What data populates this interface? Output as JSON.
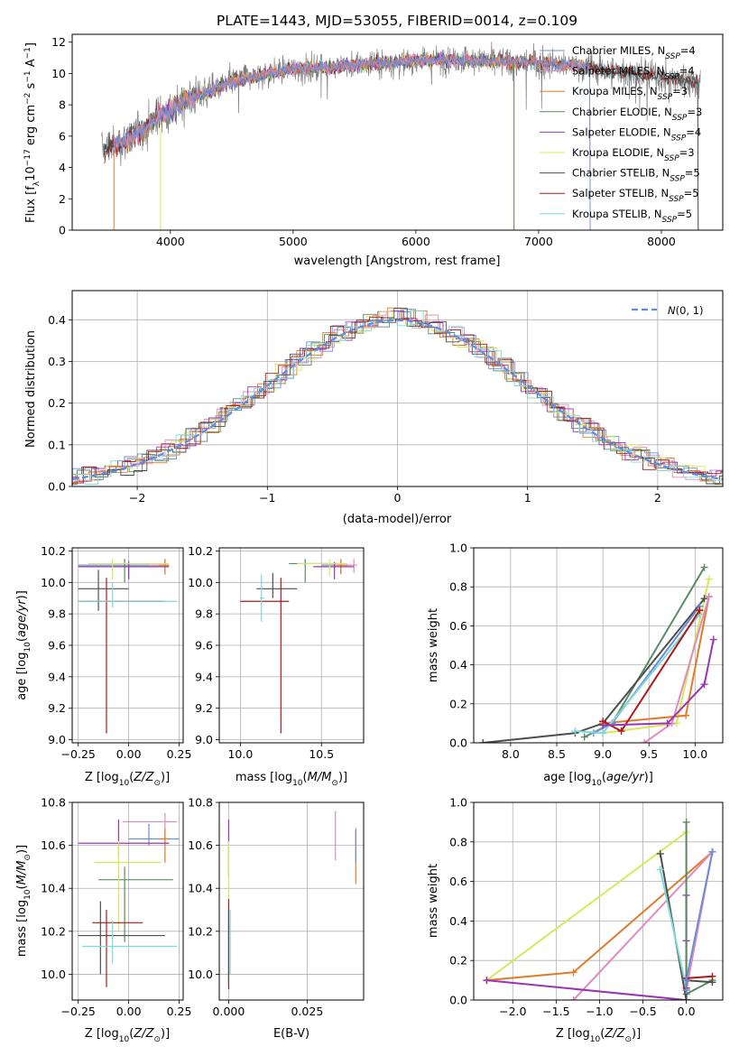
{
  "colors": {
    "chabrier_miles": "#6a8fd8",
    "salpeter_miles": "#e08bbf",
    "kroupa_miles": "#e07b2a",
    "chabrier_elodie": "#5a8a64",
    "salpeter_elodie": "#9b34b4",
    "kroupa_elodie": "#d7e85a",
    "chabrier_stelib": "#4d4d4d",
    "salpeter_stelib": "#b01818",
    "kroupa_stelib": "#7fd8d8",
    "gauss": "#5b8ee0",
    "data": "#808080"
  },
  "chart_data": [
    {
      "id": "spectrum",
      "type": "line",
      "title": "PLATE=1443, MJD=53055, FIBERID=0014, z=0.109",
      "xlabel": "wavelength [Angstrom, rest frame]",
      "ylabel": "Flux [f",
      "ylabel_parts": [
        "Flux [f",
        "λ",
        "10",
        "−17",
        " erg cm",
        "−2",
        " s",
        "−1",
        " A",
        "−1",
        "]"
      ],
      "xlim": [
        3200,
        8500
      ],
      "ylim": [
        0,
        12.5
      ],
      "xticks": [
        4000,
        5000,
        6000,
        7000,
        8000
      ],
      "yticks": [
        0,
        2,
        4,
        6,
        8,
        10,
        12
      ],
      "legend_position": "right",
      "legend": [
        "Chabrier MILES, N",
        "Salpeter MILES, N",
        "Kroupa MILES, N",
        "Chabrier ELODIE, N",
        "Salpeter ELODIE, N",
        "Kroupa ELODIE, N",
        "Chabrier STELIB, N",
        "Salpeter STELIB, N",
        "Kroupa STELIB, N"
      ],
      "legend_sub": "SSP",
      "legend_n": [
        "=4",
        "=4",
        "=3",
        "=3",
        "=4",
        "=3",
        "=5",
        "=5",
        "=5"
      ],
      "legend_color_keys": [
        "chabrier_miles",
        "salpeter_miles",
        "kroupa_miles",
        "chabrier_elodie",
        "salpeter_elodie",
        "kroupa_elodie",
        "chabrier_stelib",
        "salpeter_stelib",
        "kroupa_stelib"
      ],
      "continuum": [
        [
          3450,
          5.2
        ],
        [
          3600,
          5.6
        ],
        [
          3800,
          6.6
        ],
        [
          3900,
          7.3
        ],
        [
          4000,
          7.6
        ],
        [
          4100,
          8.2
        ],
        [
          4300,
          8.8
        ],
        [
          4500,
          9.5
        ],
        [
          4800,
          10.0
        ],
        [
          5000,
          10.3
        ],
        [
          5300,
          10.4
        ],
        [
          5600,
          10.6
        ],
        [
          6000,
          10.8
        ],
        [
          6300,
          10.9
        ],
        [
          6600,
          10.8
        ],
        [
          7000,
          10.7
        ],
        [
          7400,
          10.4
        ],
        [
          7800,
          10.0
        ],
        [
          8300,
          9.5
        ]
      ],
      "data_range": [
        3440,
        8320
      ],
      "model_range": [
        3500,
        7420
      ]
    },
    {
      "id": "residuals",
      "type": "line",
      "xlabel": "(data-model)/error",
      "ylabel": "Normed distribution",
      "xlim": [
        -2.5,
        2.5
      ],
      "ylim": [
        0,
        0.47
      ],
      "xticks": [
        -2,
        -1,
        0,
        1,
        2
      ],
      "xtick_labels": [
        "−2",
        "−1",
        "0",
        "1",
        "2"
      ],
      "yticks": [
        0.0,
        0.1,
        0.2,
        0.3,
        0.4
      ],
      "grid": true,
      "legend_position": "top-right",
      "gauss_label": "N(0, 1)",
      "bin_width": 0.1
    },
    {
      "id": "age_vs_Z",
      "type": "scatter",
      "xlabel": "Z [log",
      "ylabel": "age  [log",
      "xlim": [
        -0.28,
        0.27
      ],
      "ylim": [
        8.98,
        10.22
      ],
      "xticks": [
        -0.25,
        0.0,
        0.25
      ],
      "xtick_labels": [
        "−0.25",
        "0.00",
        "0.25"
      ],
      "yticks": [
        9.0,
        9.2,
        9.4,
        9.6,
        9.8,
        10.0,
        10.2
      ],
      "grid": true,
      "errorbars": [
        {
          "c": "chabrier_miles",
          "x": 0.0,
          "xe": [
            -0.25,
            0.18
          ],
          "y": 10.11,
          "ye": [
            10.02,
            10.14
          ]
        },
        {
          "c": "salpeter_miles",
          "x": 0.18,
          "xe": [
            0.1,
            0.2
          ],
          "y": 10.11,
          "ye": [
            10.05,
            10.15
          ]
        },
        {
          "c": "kroupa_miles",
          "x": 0.18,
          "xe": [
            0.15,
            0.2
          ],
          "y": 10.11,
          "ye": [
            10.05,
            10.15
          ]
        },
        {
          "c": "chabrier_elodie",
          "x": -0.02,
          "xe": [
            -0.25,
            0.2
          ],
          "y": 10.1,
          "ye": [
            10.0,
            10.15
          ]
        },
        {
          "c": "salpeter_elodie",
          "x": 0.0,
          "xe": [
            -0.25,
            0.2
          ],
          "y": 10.1,
          "ye": [
            10.02,
            10.13
          ]
        },
        {
          "c": "kroupa_elodie",
          "x": -0.08,
          "xe": [
            -0.2,
            0.2
          ],
          "y": 10.12,
          "ye": [
            10.02,
            10.15
          ]
        },
        {
          "c": "chabrier_stelib",
          "x": -0.15,
          "xe": [
            -0.25,
            0.0
          ],
          "y": 9.96,
          "ye": [
            9.82,
            10.08
          ]
        },
        {
          "c": "salpeter_stelib",
          "x": -0.11,
          "xe": [
            -0.25,
            0.18
          ],
          "y": 9.88,
          "ye": [
            9.04,
            10.03
          ]
        },
        {
          "c": "kroupa_stelib",
          "x": -0.08,
          "xe": [
            -0.25,
            0.24
          ],
          "y": 9.88,
          "ye": [
            9.84,
            10.0
          ]
        }
      ]
    },
    {
      "id": "age_vs_mass",
      "type": "scatter",
      "xlabel": "mass [log",
      "xlim": [
        9.87,
        10.76
      ],
      "ylim": [
        8.98,
        10.22
      ],
      "xticks": [
        10.0,
        10.5
      ],
      "xtick_labels": [
        "10.0",
        "10.5"
      ],
      "yticks": [
        9.0,
        9.2,
        9.4,
        9.6,
        9.8,
        10.0,
        10.2
      ],
      "grid": true,
      "errorbars": [
        {
          "c": "chabrier_miles",
          "x": 10.62,
          "xe": [
            10.5,
            10.68
          ],
          "y": 10.11,
          "ye": [
            10.06,
            10.14
          ]
        },
        {
          "c": "salpeter_miles",
          "x": 10.7,
          "xe": [
            10.62,
            10.72
          ],
          "y": 10.11,
          "ye": [
            10.06,
            10.15
          ]
        },
        {
          "c": "kroupa_miles",
          "x": 10.62,
          "xe": [
            10.58,
            10.66
          ],
          "y": 10.11,
          "ye": [
            10.05,
            10.15
          ]
        },
        {
          "c": "chabrier_elodie",
          "x": 10.4,
          "xe": [
            10.3,
            10.62
          ],
          "y": 10.12,
          "ye": [
            10.0,
            10.15
          ]
        },
        {
          "c": "salpeter_elodie",
          "x": 10.58,
          "xe": [
            10.45,
            10.7
          ],
          "y": 10.1,
          "ye": [
            10.02,
            10.13
          ]
        },
        {
          "c": "kroupa_elodie",
          "x": 10.55,
          "xe": [
            10.35,
            10.66
          ],
          "y": 10.12,
          "ye": [
            10.04,
            10.15
          ]
        },
        {
          "c": "chabrier_stelib",
          "x": 10.2,
          "xe": [
            10.1,
            10.35
          ],
          "y": 9.96,
          "ye": [
            9.9,
            10.06
          ]
        },
        {
          "c": "salpeter_stelib",
          "x": 10.25,
          "xe": [
            10.0,
            10.3
          ],
          "y": 9.88,
          "ye": [
            9.04,
            10.03
          ]
        },
        {
          "c": "kroupa_stelib",
          "x": 10.13,
          "xe": [
            10.12,
            10.15
          ],
          "y": 9.9,
          "ye": [
            9.75,
            10.05
          ]
        }
      ]
    },
    {
      "id": "weight_vs_age",
      "type": "line",
      "xlabel": "age  [log",
      "ylabel": "mass weight",
      "xlim": [
        7.6,
        10.3
      ],
      "ylim": [
        0,
        1.0
      ],
      "xticks": [
        8.0,
        8.5,
        9.0,
        9.5,
        10.0
      ],
      "xtick_labels": [
        "8.0",
        "8.5",
        "9.0",
        "9.5",
        "10.0"
      ],
      "yticks": [
        0.0,
        0.2,
        0.4,
        0.6,
        0.8,
        1.0
      ],
      "grid": true,
      "series": [
        {
          "c": "chabrier_elodie",
          "x": [
            8.8,
            9.1,
            10.1
          ],
          "y": [
            0.03,
            0.1,
            0.9
          ]
        },
        {
          "c": "kroupa_elodie",
          "x": [
            9.0,
            9.8,
            10.15
          ],
          "y": [
            0.05,
            0.1,
            0.84
          ]
        },
        {
          "c": "chabrier_stelib",
          "x": [
            7.7,
            8.7,
            9.0,
            10.1
          ],
          "y": [
            0.0,
            0.05,
            0.1,
            0.74
          ]
        },
        {
          "c": "kroupa_miles",
          "x": [
            9.0,
            9.9,
            10.15
          ],
          "y": [
            0.1,
            0.14,
            0.75
          ]
        },
        {
          "c": "salpeter_miles",
          "x": [
            9.45,
            9.75,
            10.15
          ],
          "y": [
            0.0,
            0.1,
            0.75
          ]
        },
        {
          "c": "chabrier_miles",
          "x": [
            8.9,
            9.1,
            10.05
          ],
          "y": [
            0.05,
            0.1,
            0.7
          ]
        },
        {
          "c": "kroupa_stelib",
          "x": [
            8.7,
            9.0,
            10.05
          ],
          "y": [
            0.06,
            0.05,
            0.66
          ]
        },
        {
          "c": "salpeter_stelib",
          "x": [
            9.0,
            9.2,
            10.05
          ],
          "y": [
            0.11,
            0.06,
            0.68
          ]
        },
        {
          "c": "salpeter_elodie",
          "x": [
            9.0,
            9.7,
            10.1,
            10.2
          ],
          "y": [
            0.09,
            0.1,
            0.3,
            0.53
          ]
        }
      ]
    },
    {
      "id": "mass_vs_Z",
      "type": "scatter",
      "xlabel": "Z [log",
      "ylabel": "mass [log",
      "xlim": [
        -0.28,
        0.27
      ],
      "ylim": [
        9.88,
        10.8
      ],
      "xticks": [
        -0.25,
        0.0,
        0.25
      ],
      "xtick_labels": [
        "−0.25",
        "0.00",
        "0.25"
      ],
      "yticks": [
        10.0,
        10.2,
        10.4,
        10.6,
        10.8
      ],
      "grid": true,
      "errorbars": [
        {
          "c": "chabrier_miles",
          "x": 0.1,
          "xe": [
            0.0,
            0.25
          ],
          "y": 10.63,
          "ye": [
            10.6,
            10.7
          ]
        },
        {
          "c": "salpeter_miles",
          "x": 0.18,
          "xe": [
            -0.03,
            0.24
          ],
          "y": 10.71,
          "ye": [
            10.6,
            10.75
          ]
        },
        {
          "c": "kroupa_miles",
          "x": 0.18,
          "xe": [
            0.15,
            0.2
          ],
          "y": 10.63,
          "ye": [
            10.52,
            10.68
          ]
        },
        {
          "c": "chabrier_elodie",
          "x": -0.02,
          "xe": [
            -0.15,
            0.22
          ],
          "y": 10.44,
          "ye": [
            10.15,
            10.5
          ]
        },
        {
          "c": "salpeter_elodie",
          "x": -0.05,
          "xe": [
            -0.25,
            0.2
          ],
          "y": 10.61,
          "ye": [
            10.55,
            10.72
          ]
        },
        {
          "c": "kroupa_elodie",
          "x": -0.05,
          "xe": [
            -0.17,
            0.16
          ],
          "y": 10.52,
          "ye": [
            10.2,
            10.62
          ]
        },
        {
          "c": "chabrier_stelib",
          "x": -0.14,
          "xe": [
            -0.25,
            0.18
          ],
          "y": 10.18,
          "ye": [
            10.0,
            10.34
          ]
        },
        {
          "c": "salpeter_stelib",
          "x": -0.11,
          "xe": [
            -0.18,
            0.07
          ],
          "y": 10.24,
          "ye": [
            9.94,
            10.3
          ]
        },
        {
          "c": "kroupa_stelib",
          "x": -0.08,
          "xe": [
            -0.23,
            0.24
          ],
          "y": 10.13,
          "ye": [
            10.05,
            10.25
          ]
        }
      ]
    },
    {
      "id": "mass_vs_ebv",
      "type": "scatter",
      "xlabel": "E(B-V)",
      "xlim": [
        -0.003,
        0.043
      ],
      "ylim": [
        9.88,
        10.8
      ],
      "xticks": [
        0.0,
        0.025
      ],
      "xtick_labels": [
        "0.000",
        "0.025"
      ],
      "yticks": [
        10.0,
        10.2,
        10.4,
        10.6,
        10.8
      ],
      "grid": true,
      "errorbars": [
        {
          "c": "salpeter_miles",
          "x": 0.034,
          "ye": [
            10.53,
            10.76
          ]
        },
        {
          "c": "kroupa_miles",
          "x": 0.0405,
          "ye": [
            10.42,
            10.67
          ]
        },
        {
          "c": "chabrier_miles",
          "x": 0.0405,
          "ye": [
            10.52,
            10.68
          ]
        },
        {
          "c": "salpeter_elodie",
          "x": 0.0,
          "ye": [
            10.45,
            10.72
          ]
        },
        {
          "c": "kroupa_elodie",
          "x": 0.0,
          "ye": [
            10.35,
            10.62
          ]
        },
        {
          "c": "salpeter_stelib",
          "x": 0.0,
          "ye": [
            9.93,
            10.35
          ]
        },
        {
          "c": "chabrier_stelib",
          "x": 0.0,
          "ye": [
            9.95,
            10.3
          ]
        },
        {
          "c": "kroupa_stelib",
          "x": 0.0005,
          "ye": [
            10.0,
            10.3
          ]
        }
      ]
    },
    {
      "id": "weight_vs_Z",
      "type": "line",
      "xlabel": "Z [log",
      "ylabel": "mass weight",
      "xlim": [
        -2.45,
        0.42
      ],
      "ylim": [
        0,
        1.0
      ],
      "xticks": [
        -2.0,
        -1.5,
        -1.0,
        -0.5,
        0.0
      ],
      "xtick_labels": [
        "−2.0",
        "−1.5",
        "−1.0",
        "−0.5",
        "0.0"
      ],
      "yticks": [
        0.0,
        0.2,
        0.4,
        0.6,
        0.8,
        1.0
      ],
      "grid": true,
      "series": [
        {
          "c": "kroupa_elodie",
          "x": [
            -2.3,
            0.0,
            0.0
          ],
          "y": [
            0.1,
            0.85,
            0.05
          ]
        },
        {
          "c": "kroupa_miles",
          "x": [
            -2.3,
            -1.3,
            0.3
          ],
          "y": [
            0.1,
            0.14,
            0.75
          ]
        },
        {
          "c": "salpeter_miles",
          "x": [
            -1.3,
            0.3,
            0.0
          ],
          "y": [
            0.0,
            0.75,
            0.05
          ]
        },
        {
          "c": "salpeter_elodie",
          "x": [
            -2.3,
            0.0,
            0.0,
            0.0
          ],
          "y": [
            0.1,
            0.0,
            0.3,
            0.53
          ]
        },
        {
          "c": "chabrier_elodie",
          "x": [
            0.0,
            0.0,
            0.3
          ],
          "y": [
            0.9,
            0.03,
            0.1
          ]
        },
        {
          "c": "chabrier_stelib",
          "x": [
            -0.3,
            0.0,
            0.0,
            0.3
          ],
          "y": [
            0.74,
            0.0,
            0.1,
            0.09
          ]
        },
        {
          "c": "kroupa_stelib",
          "x": [
            -0.3,
            0.0,
            0.0
          ],
          "y": [
            0.66,
            0.06,
            0.05
          ]
        },
        {
          "c": "salpeter_stelib",
          "x": [
            0.0,
            0.0,
            0.3
          ],
          "y": [
            0.06,
            0.11,
            0.12
          ]
        },
        {
          "c": "chabrier_miles",
          "x": [
            0.0,
            0.0,
            0.3
          ],
          "y": [
            0.05,
            0.1,
            0.75
          ]
        }
      ]
    }
  ]
}
